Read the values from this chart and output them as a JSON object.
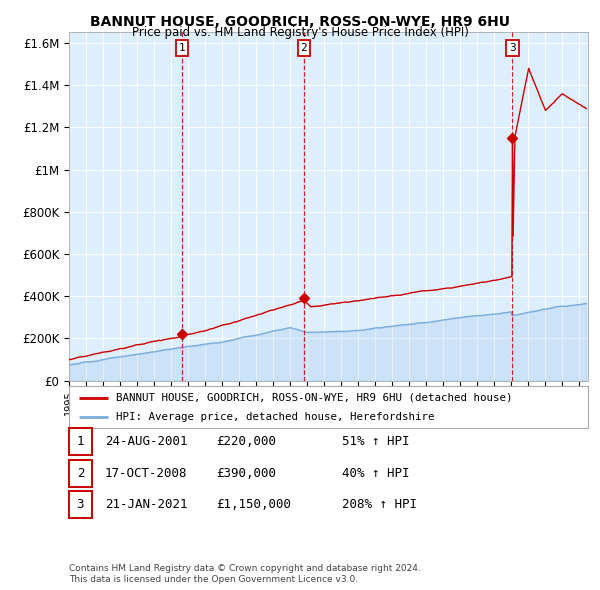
{
  "title": "BANNUT HOUSE, GOODRICH, ROSS-ON-WYE, HR9 6HU",
  "subtitle": "Price paid vs. HM Land Registry's House Price Index (HPI)",
  "legend_line1": "BANNUT HOUSE, GOODRICH, ROSS-ON-WYE, HR9 6HU (detached house)",
  "legend_line2": "HPI: Average price, detached house, Herefordshire",
  "footer1": "Contains HM Land Registry data © Crown copyright and database right 2024.",
  "footer2": "This data is licensed under the Open Government Licence v3.0.",
  "transactions": [
    {
      "num": 1,
      "date": "24-AUG-2001",
      "price": "£220,000",
      "pct": "51% ↑ HPI",
      "x": 2001.65
    },
    {
      "num": 2,
      "date": "17-OCT-2008",
      "price": "£390,000",
      "pct": "40% ↑ HPI",
      "x": 2008.8
    },
    {
      "num": 3,
      "date": "21-JAN-2021",
      "price": "£1,150,000",
      "pct": "208% ↑ HPI",
      "x": 2021.06
    }
  ],
  "transaction_values": [
    220000,
    390000,
    1150000
  ],
  "hpi_color": "#7aaddc",
  "price_color": "#cc0000",
  "background_color": "#ddeeff",
  "ylim": [
    0,
    1650000
  ],
  "xlim_start": 1995.0,
  "xlim_end": 2025.5,
  "yticks": [
    0,
    200000,
    400000,
    600000,
    800000,
    1000000,
    1200000,
    1400000,
    1600000
  ],
  "ytick_labels": [
    "£0",
    "£200K",
    "£400K",
    "£600K",
    "£800K",
    "£1M",
    "£1.2M",
    "£1.4M",
    "£1.6M"
  ]
}
